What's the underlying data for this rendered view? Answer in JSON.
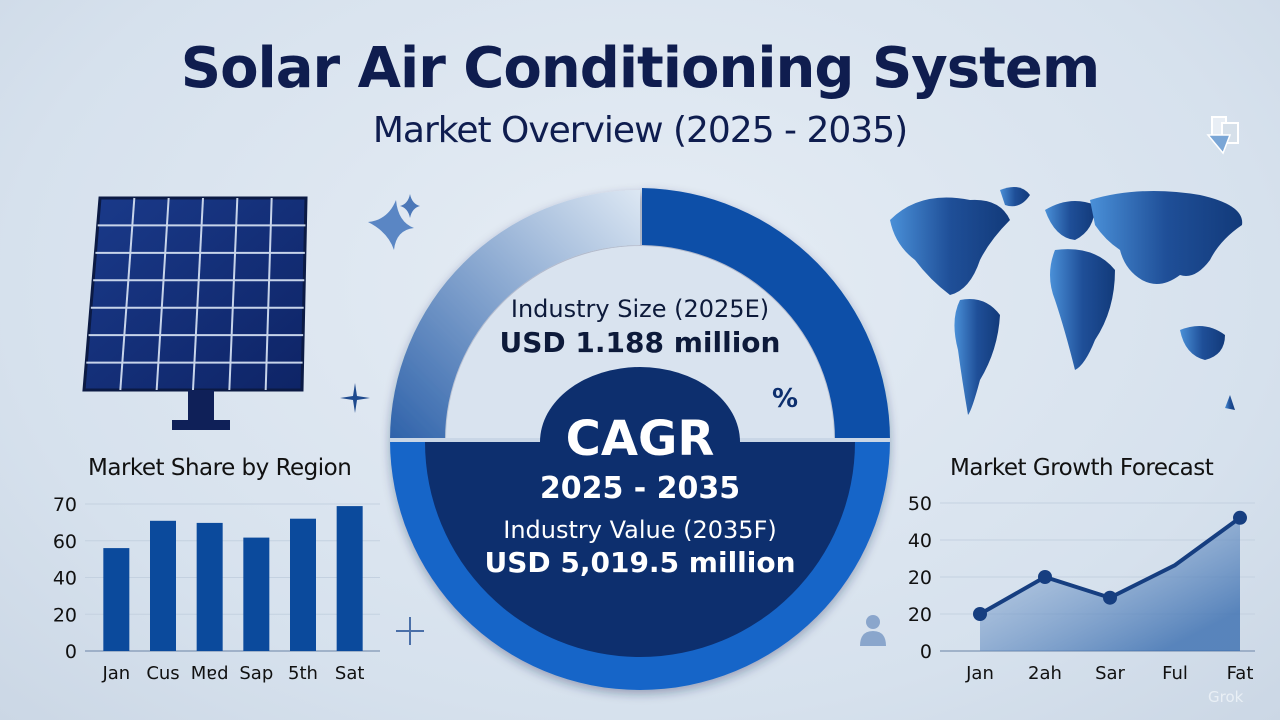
{
  "header": {
    "title": "Solar Air Conditioning System",
    "subtitle": "Market Overview (2025 - 2035)"
  },
  "center": {
    "industry_size_label": "Industry Size (2025E)",
    "industry_size_value": "USD 1.188 million",
    "percent_symbol": "%",
    "cagr_label": "CAGR",
    "cagr_period": "2025 - 2035",
    "industry_value_label": "Industry Value (2035F)",
    "industry_value_value": "USD 5,019.5 million"
  },
  "colors": {
    "navy": "#0d2f6e",
    "blue": "#0b4fa8",
    "bright_blue": "#1565c8",
    "bar": "#0b4a9c",
    "line": "#163e80"
  },
  "icons": [
    "solar-panel-icon",
    "sparkle-icon",
    "world-map-icon",
    "person-icon",
    "plus-icon",
    "share-icon"
  ],
  "watermark": "Grok",
  "chart_data": [
    {
      "type": "bar",
      "title": "Market Share by Region",
      "categories": [
        "Jan",
        "Cus",
        "Mɐd",
        "Sap",
        "5th",
        "Sat"
      ],
      "values": [
        49,
        62,
        61,
        54,
        63,
        69
      ],
      "ylim": [
        0,
        70
      ],
      "ytick_labels": [
        "0",
        "20",
        "40",
        "60",
        "70"
      ],
      "grid": true
    },
    {
      "type": "area",
      "title": "Market Growth Forecast",
      "categories": [
        "Jan",
        "2ah",
        "Sar",
        "Ful",
        "Fat"
      ],
      "values": [
        12.5,
        25,
        18,
        29,
        45
      ],
      "ylim": [
        0,
        50
      ],
      "ytick_labels": [
        "0",
        "20",
        "20",
        "40",
        "50"
      ],
      "grid": true
    }
  ]
}
